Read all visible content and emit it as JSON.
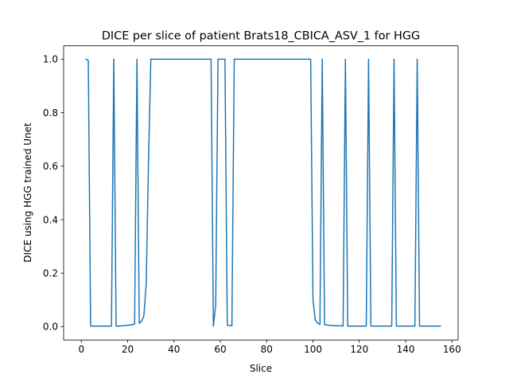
{
  "chart_data": {
    "type": "line",
    "title": "DICE per slice of patient Brats18_CBICA_ASV_1 for HGG",
    "xlabel": "Slice",
    "ylabel": "DICE using HGG trained Unet",
    "xlim": [
      -7.65,
      162.65
    ],
    "ylim": [
      -0.05,
      1.05
    ],
    "xticks": [
      0,
      20,
      40,
      60,
      80,
      100,
      120,
      140,
      160
    ],
    "yticks": [
      0.0,
      0.2,
      0.4,
      0.6,
      0.8,
      1.0
    ],
    "ytick_labels": [
      "0.0",
      "0.2",
      "0.4",
      "0.6",
      "0.8",
      "1.0"
    ],
    "grid": false,
    "legend": "none",
    "series": [
      {
        "color": "#1f77b4",
        "x": [
          2,
          3,
          4,
          5,
          6,
          7,
          8,
          9,
          10,
          11,
          12,
          13,
          14,
          15,
          16,
          17,
          18,
          19,
          20,
          21,
          22,
          23,
          24,
          25,
          26,
          27,
          28,
          29,
          30,
          31,
          32,
          33,
          34,
          35,
          36,
          37,
          38,
          39,
          40,
          41,
          42,
          43,
          44,
          45,
          46,
          47,
          48,
          49,
          50,
          51,
          52,
          53,
          54,
          55,
          56,
          57,
          58,
          59,
          60,
          61,
          62,
          63,
          64,
          65,
          66,
          67,
          68,
          69,
          70,
          71,
          72,
          73,
          74,
          75,
          76,
          77,
          78,
          79,
          80,
          81,
          82,
          83,
          84,
          85,
          86,
          87,
          88,
          89,
          90,
          91,
          92,
          93,
          94,
          95,
          96,
          97,
          98,
          99,
          100,
          101,
          102,
          103,
          104,
          105,
          106,
          107,
          108,
          109,
          110,
          111,
          112,
          113,
          114,
          115,
          116,
          117,
          118,
          119,
          120,
          121,
          122,
          123,
          124,
          125,
          126,
          127,
          128,
          129,
          130,
          131,
          132,
          133,
          134,
          135,
          136,
          137,
          138,
          139,
          140,
          141,
          142,
          143,
          144,
          145,
          146,
          147,
          148,
          149,
          150,
          151,
          152,
          153,
          154,
          155
        ],
        "y": [
          1.0,
          0.995,
          0.002,
          0.002,
          0.002,
          0.002,
          0.002,
          0.002,
          0.002,
          0.002,
          0.002,
          0.002,
          1.0,
          0.002,
          0.002,
          0.003,
          0.003,
          0.004,
          0.005,
          0.006,
          0.007,
          0.01,
          1.0,
          0.012,
          0.02,
          0.04,
          0.16,
          0.62,
          1.0,
          1.0,
          1.0,
          1.0,
          1.0,
          1.0,
          1.0,
          1.0,
          1.0,
          1.0,
          1.0,
          1.0,
          1.0,
          1.0,
          1.0,
          1.0,
          1.0,
          1.0,
          1.0,
          1.0,
          1.0,
          1.0,
          1.0,
          1.0,
          1.0,
          1.0,
          1.0,
          0.002,
          0.08,
          1.0,
          1.0,
          1.0,
          1.0,
          0.005,
          0.004,
          0.003,
          1.0,
          1.0,
          1.0,
          1.0,
          1.0,
          1.0,
          1.0,
          1.0,
          1.0,
          1.0,
          1.0,
          1.0,
          1.0,
          1.0,
          1.0,
          1.0,
          1.0,
          1.0,
          1.0,
          1.0,
          1.0,
          1.0,
          1.0,
          1.0,
          1.0,
          1.0,
          1.0,
          1.0,
          1.0,
          1.0,
          1.0,
          1.0,
          1.0,
          1.0,
          0.1,
          0.025,
          0.013,
          0.008,
          1.0,
          0.007,
          0.006,
          0.005,
          0.004,
          0.004,
          0.003,
          0.003,
          0.003,
          0.002,
          1.0,
          0.002,
          0.002,
          0.002,
          0.002,
          0.002,
          0.002,
          0.002,
          0.002,
          0.002,
          1.0,
          0.002,
          0.002,
          0.002,
          0.002,
          0.002,
          0.002,
          0.002,
          0.002,
          0.002,
          0.002,
          1.0,
          0.002,
          0.002,
          0.002,
          0.002,
          0.002,
          0.002,
          0.002,
          0.002,
          0.002,
          1.0,
          0.002,
          0.002,
          0.002,
          0.002,
          0.002,
          0.002,
          0.002,
          0.002,
          0.002,
          0.002
        ]
      }
    ]
  }
}
